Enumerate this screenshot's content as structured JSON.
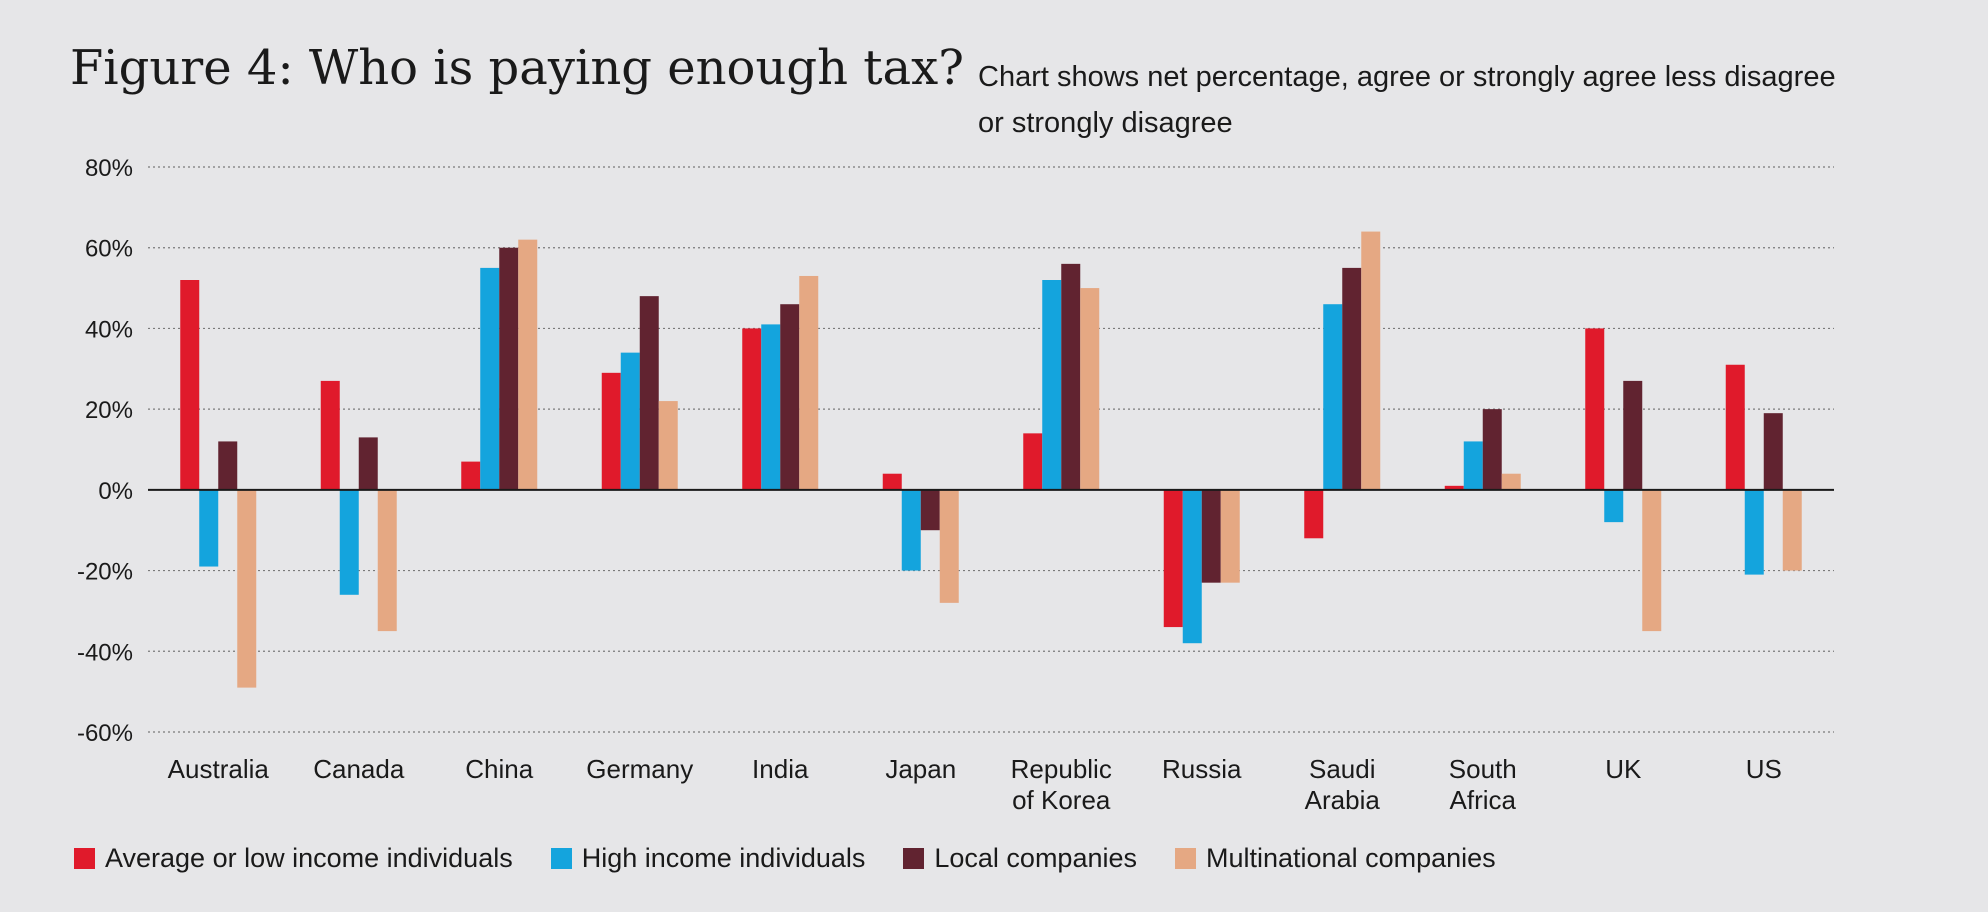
{
  "chart_data": {
    "type": "bar",
    "title": "Figure 4: Who is paying enough tax?",
    "subtitle": "Chart shows net percentage, agree or strongly agree less disagree or strongly disagree",
    "xlabel": "",
    "ylabel": "",
    "ylim": [
      -60,
      80
    ],
    "yticks": [
      80,
      60,
      40,
      20,
      0,
      -20,
      -40,
      -60
    ],
    "ytick_labels": [
      "80%",
      "60%",
      "40%",
      "20%",
      "0%",
      "-20%",
      "-40%",
      "-60%"
    ],
    "grid": true,
    "categories": [
      [
        "Australia"
      ],
      [
        "Canada"
      ],
      [
        "China"
      ],
      [
        "Germany"
      ],
      [
        "India"
      ],
      [
        "Japan"
      ],
      [
        "Republic",
        "of Korea"
      ],
      [
        "Russia"
      ],
      [
        "Saudi",
        "Arabia"
      ],
      [
        "South",
        "Africa"
      ],
      [
        "UK"
      ],
      [
        "US"
      ]
    ],
    "series": [
      {
        "name": "Average or low income individuals",
        "color": "#e01a2b",
        "values": [
          52,
          27,
          7,
          29,
          40,
          4,
          14,
          -34,
          -12,
          1,
          40,
          31
        ]
      },
      {
        "name": "High income individuals",
        "color": "#14a4dd",
        "values": [
          -19,
          -26,
          55,
          34,
          41,
          -20,
          52,
          -38,
          46,
          12,
          -8,
          -21
        ]
      },
      {
        "name": "Local companies",
        "color": "#612330",
        "values": [
          12,
          13,
          60,
          48,
          46,
          -10,
          56,
          -23,
          55,
          20,
          27,
          19
        ]
      },
      {
        "name": "Multinational companies",
        "color": "#e5a883",
        "values": [
          -49,
          -35,
          62,
          22,
          53,
          -28,
          50,
          -23,
          64,
          4,
          -35,
          -20
        ]
      }
    ],
    "legend_position": "bottom-left"
  }
}
